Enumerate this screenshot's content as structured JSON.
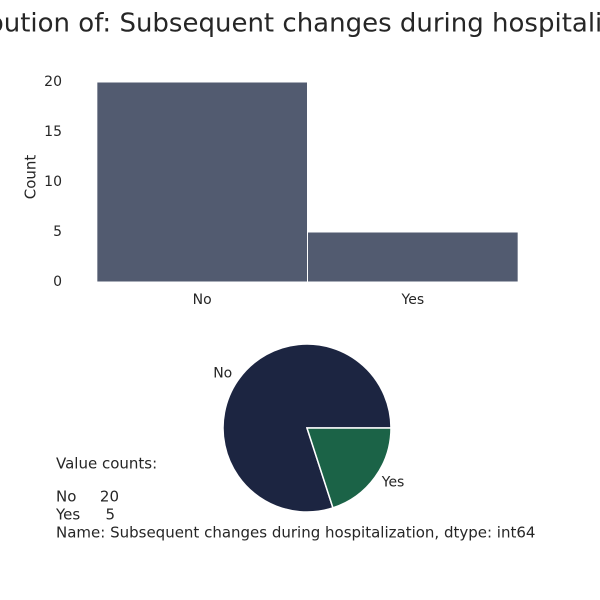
{
  "chart_data": [
    {
      "type": "bar",
      "title": "Distribution of: Subsequent changes during hospitalization",
      "categories": [
        "No",
        "Yes"
      ],
      "values": [
        20,
        5
      ],
      "color": "#525b70",
      "ylabel": "Count",
      "ylim": [
        0,
        21
      ],
      "yticks": [
        0,
        5,
        10,
        15,
        20
      ],
      "grid": false
    },
    {
      "type": "pie",
      "categories": [
        "No",
        "Yes"
      ],
      "values": [
        20,
        5
      ],
      "colors": [
        "#1c2541",
        "#1b6347"
      ]
    }
  ],
  "text_output": {
    "heading": "Value counts:",
    "rows": [
      [
        "No",
        20
      ],
      [
        "Yes",
        5
      ]
    ],
    "footer": "Name: Subsequent changes during hospitalization, dtype: int64"
  }
}
